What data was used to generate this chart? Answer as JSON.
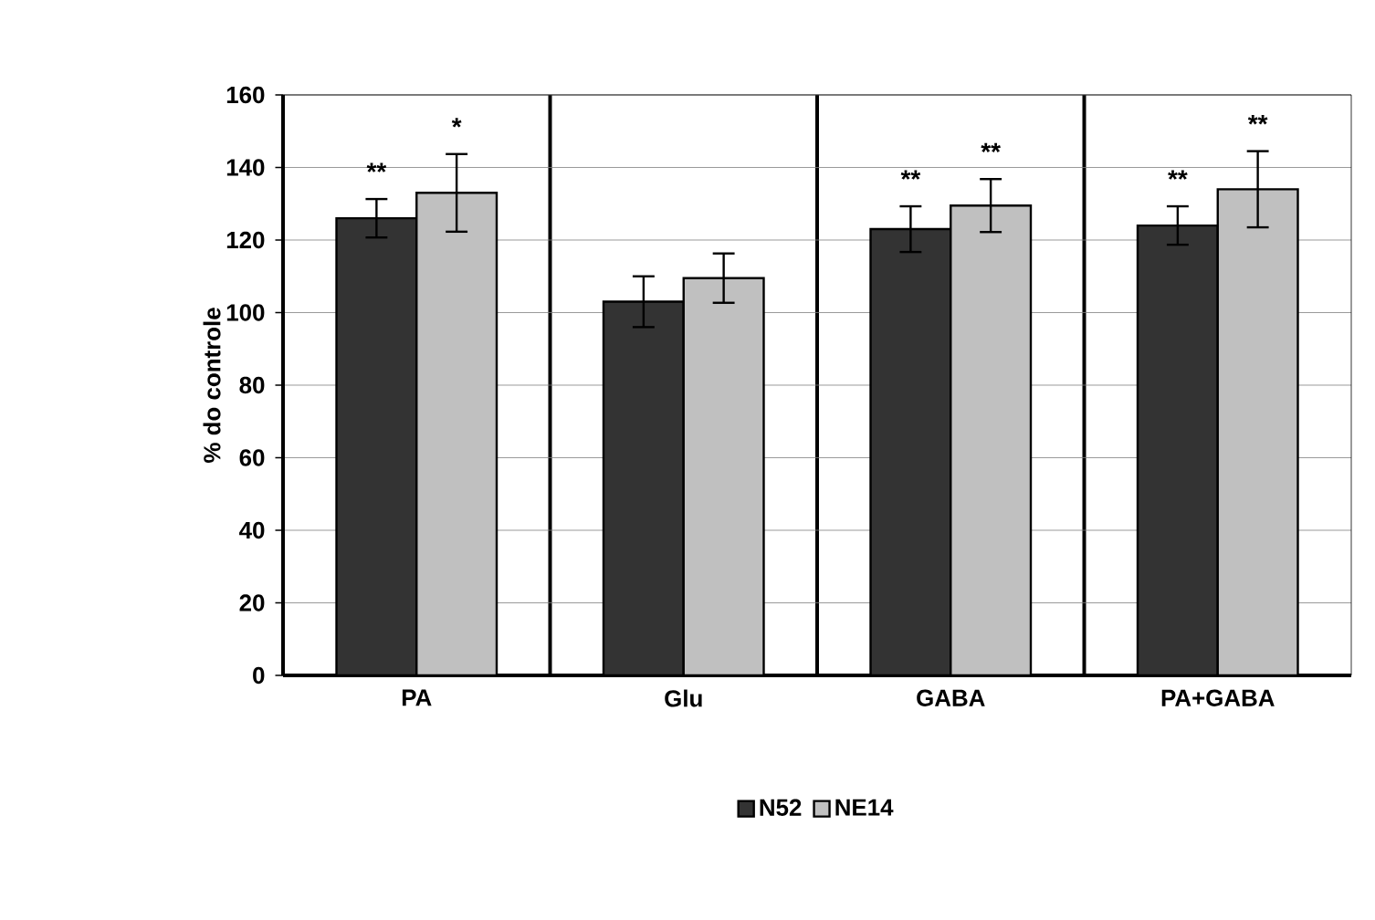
{
  "chart_data": {
    "type": "bar",
    "ylabel": "% do controle",
    "categories": [
      "PA",
      "Glu",
      "GABA",
      "PA+GABA"
    ],
    "series": [
      {
        "name": "N52",
        "color": "#333333",
        "values": [
          126,
          103,
          123,
          124
        ],
        "errors": [
          5.3,
          7,
          6.3,
          5.3
        ]
      },
      {
        "name": "NE14",
        "color": "#c0c0c0",
        "values": [
          133,
          109.5,
          129.5,
          134
        ],
        "errors": [
          10.7,
          6.8,
          7.3,
          10.5
        ]
      }
    ],
    "ylim": [
      0,
      160
    ],
    "yticks": [
      0,
      20,
      40,
      60,
      80,
      100,
      120,
      140,
      160
    ],
    "grid": true,
    "legend": "bottom",
    "annotations": [
      "**",
      "*",
      "**",
      "**",
      "**",
      "**"
    ]
  }
}
